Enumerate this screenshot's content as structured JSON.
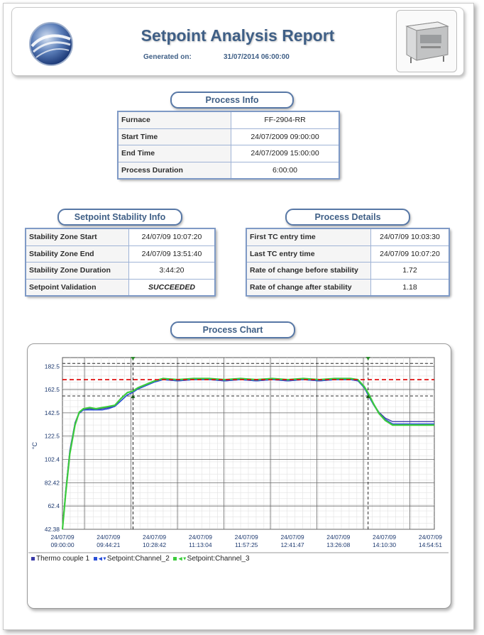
{
  "header": {
    "title": "Setpoint Analysis Report",
    "generated_label": "Generated on:",
    "generated_value": "31/07/2014 06:00:00"
  },
  "process_info": {
    "heading": "Process Info",
    "rows": [
      {
        "label": "Furnace",
        "value": "FF-2904-RR"
      },
      {
        "label": "Start Time",
        "value": "24/07/2009 09:00:00"
      },
      {
        "label": "End Time",
        "value": "24/07/2009 15:00:00"
      },
      {
        "label": "Process Duration",
        "value": "6:00:00"
      }
    ]
  },
  "setpoint_stability": {
    "heading": "Setpoint Stability Info",
    "rows": [
      {
        "label": "Stability Zone Start",
        "value": "24/07/09 10:07:20"
      },
      {
        "label": "Stability Zone End",
        "value": "24/07/09 13:51:40"
      },
      {
        "label": "Stability Zone Duration",
        "value": "3:44:20"
      },
      {
        "label": "Setpoint Validation",
        "value": "SUCCEEDED"
      }
    ]
  },
  "process_details": {
    "heading": "Process Details",
    "rows": [
      {
        "label": "First TC entry time",
        "value": "24/07/09 10:03:30"
      },
      {
        "label": "Last TC entry time",
        "value": "24/07/09 10:07:20"
      },
      {
        "label": "Rate of change before stability",
        "value": "1.72"
      },
      {
        "label": "Rate of change after stability",
        "value": "1.18"
      }
    ]
  },
  "chart_section": {
    "heading": "Process Chart"
  },
  "colors": {
    "accent": "#3f5f86",
    "succeeded": "#6aa525",
    "series1": "#3a3aa8",
    "series2": "#2a4fd8",
    "series3": "#3ccc3c",
    "setpoint": "#e01010"
  },
  "chart_data": {
    "type": "line",
    "title": "",
    "xlabel": "",
    "ylabel": "°C",
    "ylim": [
      42.38,
      190
    ],
    "y_ticks": [
      "182.5",
      "162.5",
      "142.5",
      "122.5",
      "102.4",
      "82.42",
      "62.4",
      "42.38"
    ],
    "y_tick_values": [
      182.5,
      162.5,
      142.5,
      122.5,
      102.4,
      82.42,
      62.4,
      42.38
    ],
    "x_ticks": [
      [
        "24/07/09",
        "09:00:00"
      ],
      [
        "24/07/09",
        "09:44:21"
      ],
      [
        "24/07/09",
        "10:28:42"
      ],
      [
        "24/07/09",
        "11:13:04"
      ],
      [
        "24/07/09",
        "11:57:25"
      ],
      [
        "24/07/09",
        "12:41:47"
      ],
      [
        "24/07/09",
        "13:26:08"
      ],
      [
        "24/07/09",
        "14:10:30"
      ],
      [
        "24/07/09",
        "14:54:51"
      ]
    ],
    "x_range_minutes": [
      0,
      354.85
    ],
    "setpoint": 171,
    "band_upper": 185,
    "band_lower": 157,
    "stability_start_minutes": 67.33,
    "stability_end_minutes": 291.67,
    "grid": true,
    "legend_position": "bottom-left",
    "series": [
      {
        "name": "Thermo couple 1",
        "color": "#3a3aa8",
        "x": [
          0,
          3,
          7,
          12,
          16,
          20,
          26,
          32,
          38,
          44,
          50,
          56,
          62,
          67,
          72,
          80,
          88,
          96,
          110,
          125,
          140,
          155,
          170,
          185,
          200,
          215,
          230,
          245,
          260,
          275,
          282,
          288,
          292,
          297,
          302,
          308,
          315,
          325,
          340,
          354.85
        ],
        "values": [
          42.4,
          75,
          110,
          134,
          143,
          145,
          146,
          145,
          146,
          147,
          148,
          153,
          158,
          160,
          163,
          166,
          169,
          171,
          170,
          171,
          171,
          170,
          171,
          170,
          171,
          170,
          171,
          170,
          171,
          171,
          170,
          164,
          158,
          150,
          143,
          138,
          135,
          135,
          135,
          135
        ]
      },
      {
        "name": "Setpoint:Channel_2",
        "color": "#2a4fd8",
        "x": [
          0,
          3,
          7,
          12,
          16,
          20,
          26,
          32,
          38,
          44,
          50,
          56,
          62,
          67,
          72,
          80,
          88,
          96,
          110,
          125,
          140,
          155,
          170,
          185,
          200,
          215,
          230,
          245,
          260,
          275,
          282,
          288,
          292,
          297,
          302,
          308,
          315,
          325,
          340,
          354.85
        ],
        "values": [
          42.4,
          74,
          109,
          133,
          142,
          145,
          145,
          145,
          145,
          146,
          148,
          153,
          158,
          160,
          163,
          166,
          169,
          171,
          170,
          171,
          171,
          170,
          171,
          170,
          171,
          170,
          171,
          170,
          171,
          171,
          170,
          164,
          157,
          149,
          142,
          137,
          133,
          133,
          133,
          133
        ]
      },
      {
        "name": "Setpoint:Channel_3",
        "color": "#3ccc3c",
        "x": [
          0,
          3,
          7,
          12,
          16,
          20,
          26,
          32,
          38,
          44,
          50,
          56,
          62,
          67,
          72,
          80,
          88,
          96,
          110,
          125,
          140,
          155,
          170,
          185,
          200,
          215,
          230,
          245,
          260,
          275,
          282,
          288,
          292,
          297,
          302,
          308,
          315,
          325,
          340,
          354.85
        ],
        "values": [
          42.4,
          72,
          107,
          132,
          143,
          146,
          147,
          146,
          147,
          148,
          149,
          155,
          160,
          161,
          164,
          167,
          170,
          172,
          171,
          172,
          172,
          171,
          172,
          171,
          172,
          171,
          172,
          171,
          172,
          172,
          171,
          165,
          159,
          150,
          142,
          136,
          132,
          132,
          132,
          132
        ]
      }
    ]
  }
}
